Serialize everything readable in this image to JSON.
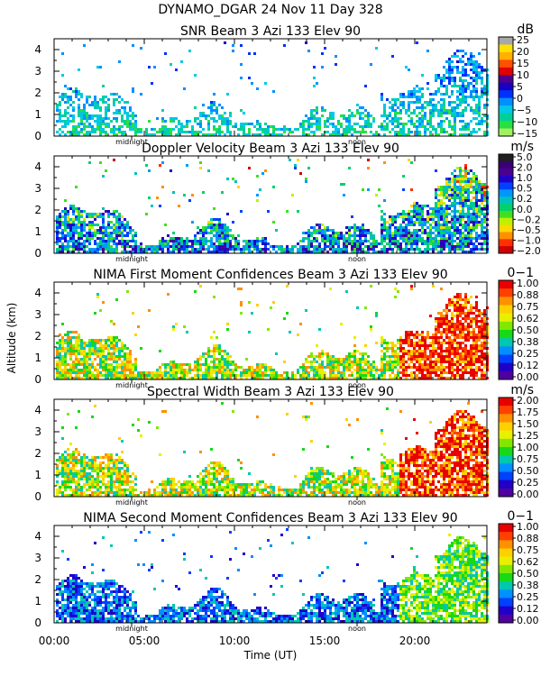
{
  "figure": {
    "title": "DYNAMO_DGAR  24 Nov 11 Day 328",
    "ylabel": "Altitude (km)",
    "xlabel": "Time (UT)",
    "x_ticklabels": [
      "00:00",
      "05:00",
      "10:00",
      "15:00",
      "20:00"
    ],
    "day_markers": [
      "midnight",
      "noon"
    ]
  },
  "chart_data": [
    {
      "type": "heatmap",
      "title": "SNR Beam 3 Azi 133 Elev 90",
      "unit": "dB",
      "xlabel": "Time (UT)",
      "ylabel": "Altitude (km)",
      "xlim": [
        0,
        24
      ],
      "ylim": [
        0,
        4.5
      ],
      "y_ticks": [
        0,
        1,
        2,
        3,
        4
      ],
      "x_ticks": [
        0,
        5,
        10,
        15,
        20
      ],
      "colorbar": {
        "min": -15,
        "max": 25,
        "tick_labels": [
          "25",
          "20",
          "15",
          "10",
          "5",
          "0",
          "−5",
          "−10",
          "−15"
        ],
        "colors": [
          "#a8a8a8",
          "#ffe000",
          "#ffb000",
          "#ff5000",
          "#e00000",
          "#50008c",
          "#1800c0",
          "#0030ff",
          "#0090ff",
          "#00c8e6",
          "#00d098",
          "#28e040",
          "#a0f060"
        ]
      }
    },
    {
      "type": "heatmap",
      "title": "Doppler Velocity Beam 3 Azi 133 Elev 90",
      "unit": "m/s",
      "xlabel": "Time (UT)",
      "ylabel": "Altitude (km)",
      "xlim": [
        0,
        24
      ],
      "ylim": [
        0,
        4.5
      ],
      "y_ticks": [
        0,
        1,
        2,
        3,
        4
      ],
      "x_ticks": [
        0,
        5,
        10,
        15,
        20
      ],
      "colorbar": {
        "min": -2.0,
        "max": 5.0,
        "tick_labels": [
          "5.0",
          "2.0",
          "1.0",
          "0.5",
          "0.2",
          "0.0",
          "−0.2",
          "−0.5",
          "−1.0",
          "−2.0"
        ],
        "colors": [
          "#202020",
          "#380070",
          "#4a0090",
          "#2000c8",
          "#0040ff",
          "#0098ff",
          "#00c0c0",
          "#00d070",
          "#40e020",
          "#c0f000",
          "#ffd800",
          "#ff9000",
          "#ff3000",
          "#d00000"
        ]
      }
    },
    {
      "type": "heatmap",
      "title": "NIMA First Moment Confidences Beam 3 Azi 133 Elev 90",
      "unit": "0−1",
      "xlabel": "Time (UT)",
      "ylabel": "Altitude (km)",
      "xlim": [
        0,
        24
      ],
      "ylim": [
        0,
        4.5
      ],
      "y_ticks": [
        0,
        1,
        2,
        3,
        4
      ],
      "x_ticks": [
        0,
        5,
        10,
        15,
        20
      ],
      "colorbar": {
        "min": 0.0,
        "max": 1.0,
        "tick_labels": [
          "1.00",
          "0.88",
          "0.75",
          "0.62",
          "0.50",
          "0.38",
          "0.25",
          "0.12",
          "0.00"
        ],
        "colors": [
          "#e80000",
          "#ff4000",
          "#ff9000",
          "#ffd000",
          "#e8f000",
          "#80e800",
          "#18d818",
          "#00c8b0",
          "#0090ff",
          "#0040ff",
          "#2000c8",
          "#5000a0"
        ]
      }
    },
    {
      "type": "heatmap",
      "title": "Spectral Width Beam 3 Azi 133 Elev 90",
      "unit": "m/s",
      "xlabel": "Time (UT)",
      "ylabel": "Altitude (km)",
      "xlim": [
        0,
        24
      ],
      "ylim": [
        0,
        4.5
      ],
      "y_ticks": [
        0,
        1,
        2,
        3,
        4
      ],
      "x_ticks": [
        0,
        5,
        10,
        15,
        20
      ],
      "colorbar": {
        "min": 0.0,
        "max": 2.0,
        "tick_labels": [
          "2.00",
          "1.75",
          "1.50",
          "1.25",
          "1.00",
          "0.75",
          "0.50",
          "0.25",
          "0.00"
        ],
        "colors": [
          "#e80000",
          "#ff4000",
          "#ff9000",
          "#ffd000",
          "#e8f000",
          "#80e800",
          "#18d818",
          "#00c8b0",
          "#0090ff",
          "#0040ff",
          "#2000c8",
          "#5000a0"
        ]
      }
    },
    {
      "type": "heatmap",
      "title": "NIMA Second Moment Confidences Beam 3 Azi 133 Elev 90",
      "unit": "0−1",
      "xlabel": "Time (UT)",
      "ylabel": "Altitude (km)",
      "xlim": [
        0,
        24
      ],
      "ylim": [
        0,
        4.5
      ],
      "y_ticks": [
        0,
        1,
        2,
        3,
        4
      ],
      "x_ticks": [
        0,
        5,
        10,
        15,
        20
      ],
      "colorbar": {
        "min": 0.0,
        "max": 1.0,
        "tick_labels": [
          "1.00",
          "0.88",
          "0.75",
          "0.62",
          "0.50",
          "0.38",
          "0.25",
          "0.12",
          "0.00"
        ],
        "colors": [
          "#e80000",
          "#ff4000",
          "#ff9000",
          "#ffd000",
          "#e8f000",
          "#80e800",
          "#18d818",
          "#00c8b0",
          "#0090ff",
          "#0040ff",
          "#2000c8",
          "#5000a0"
        ]
      }
    }
  ]
}
